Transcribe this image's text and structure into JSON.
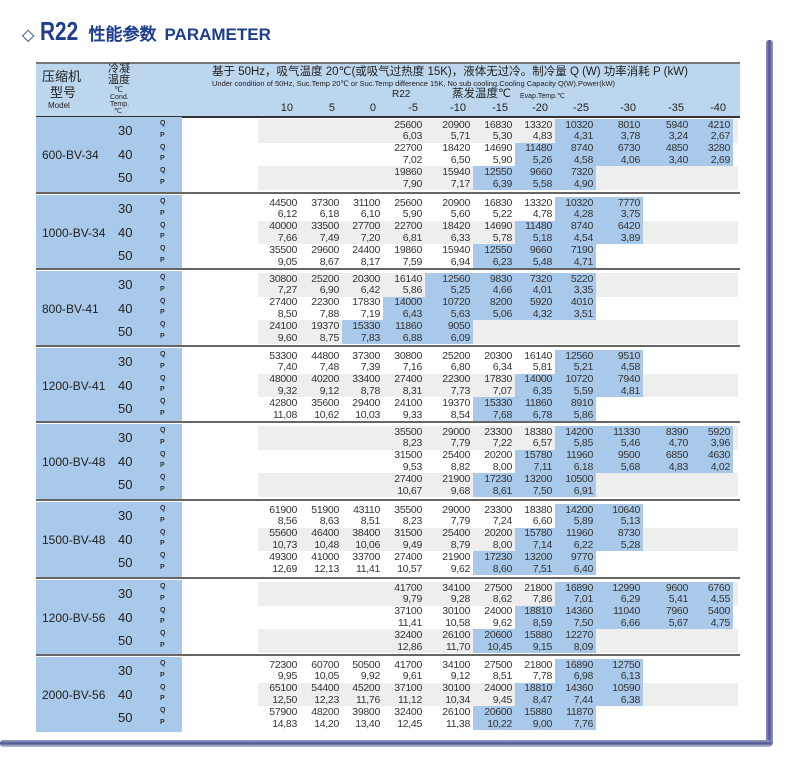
{
  "title": {
    "icon": "diamond-outline-icon",
    "code": "R22",
    "cn": "性能参数",
    "en": "PARAMETER"
  },
  "header": {
    "model_cn1": "压缩机",
    "model_cn2": "型号",
    "model_en": "Model",
    "cond_cn1": "冷凝",
    "cond_cn2": "温度",
    "cond_unit": "℃",
    "cond_en1": "Cond.",
    "cond_en2": "Temp.",
    "cond_unit2": "℃",
    "condition_cn": "基于 50Hz，吸气温度 20℃(或吸气过热度 15K)，液体无过冷。制冷量 Q (W)  功率消耗 P (kW)",
    "condition_en": "Under condition of 50Hz, Suc.Temp 20℃ or Suc.Temp difference 15K, No sub cooling.Cooling Capacity Q(W).Power(kW)",
    "refrigerant": "R22",
    "evap_cn": "蒸发温度℃",
    "evap_en": "Evap.Temp.℃",
    "evap_temps": [
      "10",
      "5",
      "0",
      "-5",
      "-10",
      "-15",
      "-20",
      "-25",
      "-30",
      "-35",
      "-40"
    ],
    "q_label": "Q",
    "p_label": "P"
  },
  "colors": {
    "highlight": "#a9c9ea",
    "shade": "#eeeeee",
    "header": "#bcd6ee",
    "title": "#1e3d8f"
  },
  "models": [
    {
      "name": "600-BV-34",
      "conds": [
        {
          "temp": "30",
          "shaded": true,
          "blue_from": 7,
          "q": [
            "",
            "",
            "",
            "25600",
            "20900",
            "16830",
            "13320",
            "10320",
            "8010",
            "5940",
            "4210"
          ],
          "p": [
            "",
            "",
            "",
            "6,03",
            "5,71",
            "5,30",
            "4,83",
            "4,31",
            "3,78",
            "3,24",
            "2,67"
          ]
        },
        {
          "temp": "40",
          "shaded": false,
          "blue_from": 6,
          "q": [
            "",
            "",
            "",
            "22700",
            "18420",
            "14690",
            "11480",
            "8740",
            "6730",
            "4850",
            "3280"
          ],
          "p": [
            "",
            "",
            "",
            "7,02",
            "6,50",
            "5,90",
            "5,26",
            "4,58",
            "4,06",
            "3,40",
            "2,69"
          ]
        },
        {
          "temp": "50",
          "shaded": true,
          "blue_from": 5,
          "q": [
            "",
            "",
            "",
            "19860",
            "15940",
            "12550",
            "9660",
            "7320",
            "",
            "",
            ""
          ],
          "p": [
            "",
            "",
            "",
            "7,90",
            "7,17",
            "6,39",
            "5,58",
            "4,90",
            "",
            "",
            ""
          ]
        }
      ]
    },
    {
      "name": "1000-BV-34",
      "conds": [
        {
          "temp": "30",
          "shaded": false,
          "blue_from": 7,
          "q": [
            "44500",
            "37300",
            "31100",
            "25600",
            "20900",
            "16830",
            "13320",
            "10320",
            "7770",
            "",
            ""
          ],
          "p": [
            "6,12",
            "6,18",
            "6,10",
            "5,90",
            "5,60",
            "5,22",
            "4,78",
            "4,28",
            "3,75",
            "",
            ""
          ]
        },
        {
          "temp": "40",
          "shaded": true,
          "blue_from": 6,
          "q": [
            "40000",
            "33500",
            "27700",
            "22700",
            "18420",
            "14690",
            "11480",
            "8740",
            "6420",
            "",
            ""
          ],
          "p": [
            "7,66",
            "7,49",
            "7,20",
            "6,81",
            "6,33",
            "5,78",
            "5,18",
            "4,54",
            "3,89",
            "",
            ""
          ]
        },
        {
          "temp": "50",
          "shaded": false,
          "blue_from": 5,
          "q": [
            "35500",
            "29600",
            "24400",
            "19860",
            "15940",
            "12550",
            "9660",
            "7190",
            "",
            "",
            ""
          ],
          "p": [
            "9,05",
            "8,67",
            "8,17",
            "7,59",
            "6,94",
            "6,23",
            "5,48",
            "4,71",
            "",
            "",
            ""
          ]
        }
      ]
    },
    {
      "name": "800-BV-41",
      "conds": [
        {
          "temp": "30",
          "shaded": true,
          "blue_from": 4,
          "q": [
            "30800",
            "25200",
            "20300",
            "16140",
            "12560",
            "9830",
            "7320",
            "5220",
            "",
            "",
            ""
          ],
          "p": [
            "7,27",
            "6,90",
            "6,42",
            "5,86",
            "5,25",
            "4,66",
            "4,01",
            "3,35",
            "",
            "",
            ""
          ]
        },
        {
          "temp": "40",
          "shaded": false,
          "blue_from": 3,
          "q": [
            "27400",
            "22300",
            "17830",
            "14000",
            "10720",
            "8200",
            "5920",
            "4010",
            "",
            "",
            ""
          ],
          "p": [
            "8,50",
            "7,88",
            "7,19",
            "6,43",
            "5,63",
            "5,06",
            "4,32",
            "3,51",
            "",
            "",
            ""
          ]
        },
        {
          "temp": "50",
          "shaded": true,
          "blue_from": 2,
          "q": [
            "24100",
            "19370",
            "15330",
            "11860",
            "9050",
            "",
            "",
            "",
            "",
            "",
            ""
          ],
          "p": [
            "9,60",
            "8,75",
            "7,83",
            "6,88",
            "6,09",
            "",
            "",
            "",
            "",
            "",
            ""
          ]
        }
      ]
    },
    {
      "name": "1200-BV-41",
      "conds": [
        {
          "temp": "30",
          "shaded": false,
          "blue_from": 7,
          "q": [
            "53300",
            "44800",
            "37300",
            "30800",
            "25200",
            "20300",
            "16140",
            "12560",
            "9510",
            "",
            ""
          ],
          "p": [
            "7,40",
            "7,48",
            "7,39",
            "7,16",
            "6,80",
            "6,34",
            "5,81",
            "5,21",
            "4,58",
            "",
            ""
          ]
        },
        {
          "temp": "40",
          "shaded": true,
          "blue_from": 6,
          "q": [
            "48000",
            "40200",
            "33400",
            "27400",
            "22300",
            "17830",
            "14000",
            "10720",
            "7940",
            "",
            ""
          ],
          "p": [
            "9,32",
            "9,12",
            "8,78",
            "8,31",
            "7,73",
            "7,07",
            "6,35",
            "5,59",
            "4,81",
            "",
            ""
          ]
        },
        {
          "temp": "50",
          "shaded": false,
          "blue_from": 5,
          "q": [
            "42800",
            "35600",
            "29400",
            "24100",
            "19370",
            "15330",
            "11860",
            "8910",
            "",
            "",
            ""
          ],
          "p": [
            "11,08",
            "10,62",
            "10,03",
            "9,33",
            "8,54",
            "7,68",
            "6,78",
            "5,86",
            "",
            "",
            ""
          ]
        }
      ]
    },
    {
      "name": "1000-BV-48",
      "conds": [
        {
          "temp": "30",
          "shaded": true,
          "blue_from": 7,
          "q": [
            "",
            "",
            "",
            "35500",
            "29000",
            "23300",
            "18380",
            "14200",
            "11330",
            "8390",
            "5920"
          ],
          "p": [
            "",
            "",
            "",
            "8,23",
            "7,79",
            "7,22",
            "6,57",
            "5,85",
            "5,46",
            "4,70",
            "3,96"
          ]
        },
        {
          "temp": "40",
          "shaded": false,
          "blue_from": 6,
          "q": [
            "",
            "",
            "",
            "31500",
            "25400",
            "20200",
            "15780",
            "11960",
            "9500",
            "6850",
            "4630"
          ],
          "p": [
            "",
            "",
            "",
            "9,53",
            "8,82",
            "8,00",
            "7,11",
            "6,18",
            "5,68",
            "4,83",
            "4,02"
          ]
        },
        {
          "temp": "50",
          "shaded": true,
          "blue_from": 5,
          "q": [
            "",
            "",
            "",
            "27400",
            "21900",
            "17230",
            "13200",
            "10500",
            "",
            "",
            ""
          ],
          "p": [
            "",
            "",
            "",
            "10,67",
            "9,68",
            "8,61",
            "7,50",
            "6,91",
            "",
            "",
            ""
          ]
        }
      ]
    },
    {
      "name": "1500-BV-48",
      "conds": [
        {
          "temp": "30",
          "shaded": false,
          "blue_from": 7,
          "q": [
            "61900",
            "51900",
            "43110",
            "35500",
            "29000",
            "23300",
            "18380",
            "14200",
            "10640",
            "",
            ""
          ],
          "p": [
            "8,56",
            "8,63",
            "8,51",
            "8,23",
            "7,79",
            "7,24",
            "6,60",
            "5,89",
            "5,13",
            "",
            ""
          ]
        },
        {
          "temp": "40",
          "shaded": true,
          "blue_from": 6,
          "q": [
            "55600",
            "46400",
            "38400",
            "31500",
            "25400",
            "20200",
            "15780",
            "11960",
            "8730",
            "",
            ""
          ],
          "p": [
            "10,73",
            "10,48",
            "10,06",
            "9,49",
            "8,79",
            "8,00",
            "7,14",
            "6,22",
            "5,28",
            "",
            ""
          ]
        },
        {
          "temp": "50",
          "shaded": false,
          "blue_from": 5,
          "q": [
            "49300",
            "41000",
            "33700",
            "27400",
            "21900",
            "17230",
            "13200",
            "9770",
            "",
            "",
            ""
          ],
          "p": [
            "12,69",
            "12,13",
            "11,41",
            "10,57",
            "9,62",
            "8,60",
            "7,51",
            "6,40",
            "",
            "",
            ""
          ]
        }
      ]
    },
    {
      "name": "1200-BV-56",
      "conds": [
        {
          "temp": "30",
          "shaded": true,
          "blue_from": 7,
          "q": [
            "",
            "",
            "",
            "41700",
            "34100",
            "27500",
            "21800",
            "16890",
            "12990",
            "9600",
            "6760"
          ],
          "p": [
            "",
            "",
            "",
            "9,79",
            "9,28",
            "8,62",
            "7,86",
            "7,01",
            "6,29",
            "5,41",
            "4,55"
          ]
        },
        {
          "temp": "40",
          "shaded": false,
          "blue_from": 6,
          "q": [
            "",
            "",
            "",
            "37100",
            "30100",
            "24000",
            "18810",
            "14360",
            "11040",
            "7960",
            "5400"
          ],
          "p": [
            "",
            "",
            "",
            "11,41",
            "10,58",
            "9,62",
            "8,59",
            "7,50",
            "6,66",
            "5,67",
            "4,75"
          ]
        },
        {
          "temp": "50",
          "shaded": true,
          "blue_from": 5,
          "q": [
            "",
            "",
            "",
            "32400",
            "26100",
            "20600",
            "15880",
            "12270",
            "",
            "",
            ""
          ],
          "p": [
            "",
            "",
            "",
            "12,86",
            "11,70",
            "10,45",
            "9,15",
            "8,09",
            "",
            "",
            ""
          ]
        }
      ]
    },
    {
      "name": "2000-BV-56",
      "conds": [
        {
          "temp": "30",
          "shaded": false,
          "blue_from": 7,
          "q": [
            "72300",
            "60700",
            "50500",
            "41700",
            "34100",
            "27500",
            "21800",
            "16890",
            "12750",
            "",
            ""
          ],
          "p": [
            "9,95",
            "10,05",
            "9,92",
            "9,61",
            "9,12",
            "8,51",
            "7,78",
            "6,98",
            "6,13",
            "",
            ""
          ]
        },
        {
          "temp": "40",
          "shaded": true,
          "blue_from": 6,
          "q": [
            "65100",
            "54400",
            "45200",
            "37100",
            "30100",
            "24000",
            "18810",
            "14360",
            "10590",
            "",
            ""
          ],
          "p": [
            "12,50",
            "12,23",
            "11,76",
            "11,12",
            "10,34",
            "9,45",
            "8,47",
            "7,44",
            "6,38",
            "",
            ""
          ]
        },
        {
          "temp": "50",
          "shaded": false,
          "blue_from": 5,
          "q": [
            "57900",
            "48200",
            "39800",
            "32400",
            "26100",
            "20600",
            "15880",
            "11870",
            "",
            "",
            ""
          ],
          "p": [
            "14,83",
            "14,20",
            "13,40",
            "12,45",
            "11,38",
            "10,22",
            "9,00",
            "7,76",
            "",
            "",
            ""
          ]
        }
      ]
    }
  ]
}
